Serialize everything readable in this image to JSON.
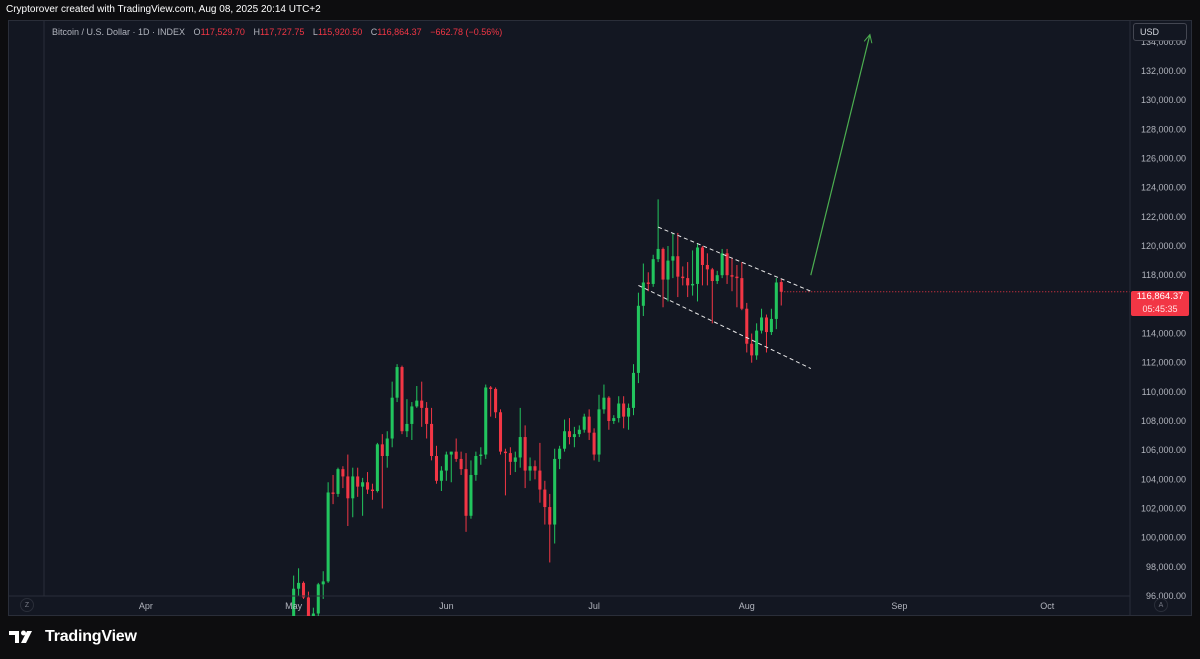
{
  "header": {
    "caption": "Cryptorover created with TradingView.com, Aug 08, 2025 20:14 UTC+2"
  },
  "legend": {
    "symbol": "Bitcoin / U.S. Dollar · 1D · INDEX",
    "o_label": "O",
    "o_value": "117,529.70",
    "h_label": "H",
    "h_value": "117,727.75",
    "l_label": "L",
    "l_value": "115,920.50",
    "c_label": "C",
    "c_value": "116,864.37",
    "change": "−662.78 (−0.56%)"
  },
  "price_axis": {
    "currency": "USD",
    "ticks": [
      "134,000.00",
      "132,000.00",
      "130,000.00",
      "128,000.00",
      "126,000.00",
      "124,000.00",
      "122,000.00",
      "120,000.00",
      "118,000.00",
      "114,000.00",
      "112,000.00",
      "110,000.00",
      "108,000.00",
      "106,000.00",
      "104,000.00",
      "102,000.00",
      "100,000.00",
      "98,000.00",
      "96,000.00"
    ],
    "last_price": "116,864.37",
    "countdown": "05:45:35"
  },
  "time_axis": {
    "labels": [
      "Apr",
      "May",
      "Jun",
      "Jul",
      "Aug",
      "Sep",
      "Oct"
    ],
    "left_button": "Z",
    "right_button": "A"
  },
  "brand": {
    "name": "TradingView"
  },
  "colors": {
    "up": "#26a69a",
    "up_bright": "#22c55e",
    "down": "#f23645",
    "bg": "#131722",
    "arrow": "#4caf50",
    "channel": "#e8e8e8"
  },
  "chart_data": {
    "type": "candlestick",
    "title": "Bitcoin / U.S. Dollar · 1D · INDEX",
    "ylim": [
      96000,
      135500
    ],
    "x_axis": "date",
    "x_range": [
      "2025-03-04",
      "2025-10-17"
    ],
    "series": [
      {
        "d": "2025-05-01",
        "o": 94200,
        "h": 97400,
        "l": 94000,
        "c": 96500
      },
      {
        "d": "2025-05-02",
        "o": 96500,
        "h": 97900,
        "l": 96000,
        "c": 96900
      },
      {
        "d": "2025-05-03",
        "o": 96900,
        "h": 97000,
        "l": 95800,
        "c": 95900
      },
      {
        "d": "2025-05-04",
        "o": 95900,
        "h": 96300,
        "l": 94100,
        "c": 94300
      },
      {
        "d": "2025-05-05",
        "o": 94300,
        "h": 95200,
        "l": 93500,
        "c": 94800
      },
      {
        "d": "2025-05-06",
        "o": 94800,
        "h": 96900,
        "l": 93400,
        "c": 96800
      },
      {
        "d": "2025-05-07",
        "o": 96800,
        "h": 97700,
        "l": 95800,
        "c": 97000
      },
      {
        "d": "2025-05-08",
        "o": 97000,
        "h": 103800,
        "l": 96900,
        "c": 103100
      },
      {
        "d": "2025-05-09",
        "o": 103100,
        "h": 104300,
        "l": 102300,
        "c": 103000
      },
      {
        "d": "2025-05-10",
        "o": 103000,
        "h": 104800,
        "l": 102800,
        "c": 104700
      },
      {
        "d": "2025-05-11",
        "o": 104700,
        "h": 104900,
        "l": 103400,
        "c": 104200
      },
      {
        "d": "2025-05-12",
        "o": 104200,
        "h": 105700,
        "l": 100800,
        "c": 102700
      },
      {
        "d": "2025-05-13",
        "o": 102700,
        "h": 104800,
        "l": 101400,
        "c": 104200
      },
      {
        "d": "2025-05-14",
        "o": 104200,
        "h": 104800,
        "l": 102800,
        "c": 103500
      },
      {
        "d": "2025-05-15",
        "o": 103500,
        "h": 104100,
        "l": 101500,
        "c": 103800
      },
      {
        "d": "2025-05-16",
        "o": 103800,
        "h": 104500,
        "l": 103000,
        "c": 103300
      },
      {
        "d": "2025-05-17",
        "o": 103300,
        "h": 103700,
        "l": 102600,
        "c": 103200
      },
      {
        "d": "2025-05-18",
        "o": 103200,
        "h": 106500,
        "l": 103100,
        "c": 106400
      },
      {
        "d": "2025-05-19",
        "o": 106400,
        "h": 107100,
        "l": 102000,
        "c": 105600
      },
      {
        "d": "2025-05-20",
        "o": 105600,
        "h": 107300,
        "l": 104800,
        "c": 106800
      },
      {
        "d": "2025-05-21",
        "o": 106800,
        "h": 110700,
        "l": 106200,
        "c": 109600
      },
      {
        "d": "2025-05-22",
        "o": 109600,
        "h": 111900,
        "l": 109300,
        "c": 111700
      },
      {
        "d": "2025-05-23",
        "o": 111700,
        "h": 111800,
        "l": 107100,
        "c": 107300
      },
      {
        "d": "2025-05-24",
        "o": 107300,
        "h": 109500,
        "l": 106900,
        "c": 107800
      },
      {
        "d": "2025-05-25",
        "o": 107800,
        "h": 109300,
        "l": 106700,
        "c": 109000
      },
      {
        "d": "2025-05-26",
        "o": 109000,
        "h": 110400,
        "l": 108900,
        "c": 109400
      },
      {
        "d": "2025-05-27",
        "o": 109400,
        "h": 110700,
        "l": 107600,
        "c": 108900
      },
      {
        "d": "2025-05-28",
        "o": 108900,
        "h": 109300,
        "l": 106800,
        "c": 107800
      },
      {
        "d": "2025-05-29",
        "o": 107800,
        "h": 108900,
        "l": 105300,
        "c": 105600
      },
      {
        "d": "2025-05-30",
        "o": 105600,
        "h": 106300,
        "l": 103700,
        "c": 103900
      },
      {
        "d": "2025-05-31",
        "o": 103900,
        "h": 104900,
        "l": 103200,
        "c": 104600
      },
      {
        "d": "2025-06-01",
        "o": 104600,
        "h": 105900,
        "l": 103900,
        "c": 105700
      },
      {
        "d": "2025-06-02",
        "o": 105700,
        "h": 105900,
        "l": 103800,
        "c": 105900
      },
      {
        "d": "2025-06-03",
        "o": 105900,
        "h": 106800,
        "l": 105200,
        "c": 105400
      },
      {
        "d": "2025-06-04",
        "o": 105400,
        "h": 105900,
        "l": 104300,
        "c": 104700
      },
      {
        "d": "2025-06-05",
        "o": 104700,
        "h": 105800,
        "l": 100400,
        "c": 101500
      },
      {
        "d": "2025-06-06",
        "o": 101500,
        "h": 105300,
        "l": 101300,
        "c": 104300
      },
      {
        "d": "2025-06-07",
        "o": 104300,
        "h": 105900,
        "l": 103900,
        "c": 105600
      },
      {
        "d": "2025-06-08",
        "o": 105600,
        "h": 106200,
        "l": 105000,
        "c": 105700
      },
      {
        "d": "2025-06-09",
        "o": 105700,
        "h": 110500,
        "l": 105400,
        "c": 110300
      },
      {
        "d": "2025-06-10",
        "o": 110300,
        "h": 110400,
        "l": 108300,
        "c": 110200
      },
      {
        "d": "2025-06-11",
        "o": 110200,
        "h": 110300,
        "l": 108200,
        "c": 108600
      },
      {
        "d": "2025-06-12",
        "o": 108600,
        "h": 108800,
        "l": 105700,
        "c": 105900
      },
      {
        "d": "2025-06-13",
        "o": 105900,
        "h": 106100,
        "l": 102900,
        "c": 105800
      },
      {
        "d": "2025-06-14",
        "o": 105800,
        "h": 106200,
        "l": 104300,
        "c": 105200
      },
      {
        "d": "2025-06-15",
        "o": 105200,
        "h": 105900,
        "l": 104500,
        "c": 105500
      },
      {
        "d": "2025-06-16",
        "o": 105500,
        "h": 108900,
        "l": 104800,
        "c": 106900
      },
      {
        "d": "2025-06-17",
        "o": 106900,
        "h": 107700,
        "l": 103400,
        "c": 104600
      },
      {
        "d": "2025-06-18",
        "o": 104600,
        "h": 105500,
        "l": 103900,
        "c": 104900
      },
      {
        "d": "2025-06-19",
        "o": 104900,
        "h": 105300,
        "l": 104000,
        "c": 104600
      },
      {
        "d": "2025-06-20",
        "o": 104600,
        "h": 106500,
        "l": 102400,
        "c": 103300
      },
      {
        "d": "2025-06-21",
        "o": 103300,
        "h": 103900,
        "l": 100900,
        "c": 102100
      },
      {
        "d": "2025-06-22",
        "o": 102100,
        "h": 103000,
        "l": 98300,
        "c": 100900
      },
      {
        "d": "2025-06-23",
        "o": 100900,
        "h": 106100,
        "l": 99600,
        "c": 105400
      },
      {
        "d": "2025-06-24",
        "o": 105400,
        "h": 106300,
        "l": 104700,
        "c": 106100
      },
      {
        "d": "2025-06-25",
        "o": 106100,
        "h": 108100,
        "l": 105900,
        "c": 107300
      },
      {
        "d": "2025-06-26",
        "o": 107300,
        "h": 108200,
        "l": 106400,
        "c": 106900
      },
      {
        "d": "2025-06-27",
        "o": 106900,
        "h": 107600,
        "l": 106200,
        "c": 107100
      },
      {
        "d": "2025-06-28",
        "o": 107100,
        "h": 107700,
        "l": 106900,
        "c": 107400
      },
      {
        "d": "2025-06-29",
        "o": 107400,
        "h": 108500,
        "l": 107200,
        "c": 108300
      },
      {
        "d": "2025-06-30",
        "o": 108300,
        "h": 108800,
        "l": 106700,
        "c": 107200
      },
      {
        "d": "2025-07-01",
        "o": 107200,
        "h": 107500,
        "l": 105300,
        "c": 105700
      },
      {
        "d": "2025-07-02",
        "o": 105700,
        "h": 109800,
        "l": 105200,
        "c": 108800
      },
      {
        "d": "2025-07-03",
        "o": 108800,
        "h": 110500,
        "l": 108500,
        "c": 109600
      },
      {
        "d": "2025-07-04",
        "o": 109600,
        "h": 109700,
        "l": 107400,
        "c": 108000
      },
      {
        "d": "2025-07-05",
        "o": 108000,
        "h": 108400,
        "l": 107800,
        "c": 108200
      },
      {
        "d": "2025-07-06",
        "o": 108200,
        "h": 109700,
        "l": 107900,
        "c": 109200
      },
      {
        "d": "2025-07-07",
        "o": 109200,
        "h": 109700,
        "l": 107500,
        "c": 108300
      },
      {
        "d": "2025-07-08",
        "o": 108300,
        "h": 109200,
        "l": 107400,
        "c": 108900
      },
      {
        "d": "2025-07-09",
        "o": 108900,
        "h": 111900,
        "l": 108400,
        "c": 111300
      },
      {
        "d": "2025-07-10",
        "o": 111300,
        "h": 116800,
        "l": 110600,
        "c": 115900
      },
      {
        "d": "2025-07-11",
        "o": 115900,
        "h": 118800,
        "l": 115200,
        "c": 117500
      },
      {
        "d": "2025-07-12",
        "o": 117500,
        "h": 118200,
        "l": 116900,
        "c": 117400
      },
      {
        "d": "2025-07-13",
        "o": 117400,
        "h": 119400,
        "l": 117200,
        "c": 119100
      },
      {
        "d": "2025-07-14",
        "o": 119100,
        "h": 123200,
        "l": 118900,
        "c": 119800
      },
      {
        "d": "2025-07-15",
        "o": 119800,
        "h": 119900,
        "l": 115800,
        "c": 117700
      },
      {
        "d": "2025-07-16",
        "o": 117700,
        "h": 120000,
        "l": 116200,
        "c": 119000
      },
      {
        "d": "2025-07-17",
        "o": 119000,
        "h": 120900,
        "l": 117800,
        "c": 119300
      },
      {
        "d": "2025-07-18",
        "o": 119300,
        "h": 120900,
        "l": 116500,
        "c": 117900
      },
      {
        "d": "2025-07-19",
        "o": 117900,
        "h": 118600,
        "l": 117300,
        "c": 117800
      },
      {
        "d": "2025-07-20",
        "o": 117800,
        "h": 118900,
        "l": 116500,
        "c": 117300
      },
      {
        "d": "2025-07-21",
        "o": 117300,
        "h": 119700,
        "l": 116600,
        "c": 117400
      },
      {
        "d": "2025-07-22",
        "o": 117400,
        "h": 120200,
        "l": 116200,
        "c": 119900
      },
      {
        "d": "2025-07-23",
        "o": 119900,
        "h": 120000,
        "l": 117300,
        "c": 118700
      },
      {
        "d": "2025-07-24",
        "o": 118700,
        "h": 119500,
        "l": 117300,
        "c": 118400
      },
      {
        "d": "2025-07-25",
        "o": 118400,
        "h": 118500,
        "l": 114700,
        "c": 117600
      },
      {
        "d": "2025-07-26",
        "o": 117600,
        "h": 118300,
        "l": 117400,
        "c": 118000
      },
      {
        "d": "2025-07-27",
        "o": 118000,
        "h": 119800,
        "l": 117800,
        "c": 119500
      },
      {
        "d": "2025-07-28",
        "o": 119500,
        "h": 119800,
        "l": 117400,
        "c": 118000
      },
      {
        "d": "2025-07-29",
        "o": 118000,
        "h": 119200,
        "l": 116900,
        "c": 117900
      },
      {
        "d": "2025-07-30",
        "o": 117900,
        "h": 118700,
        "l": 115800,
        "c": 117800
      },
      {
        "d": "2025-07-31",
        "o": 117800,
        "h": 118900,
        "l": 115600,
        "c": 115700
      },
      {
        "d": "2025-08-01",
        "o": 115700,
        "h": 116100,
        "l": 112700,
        "c": 113300
      },
      {
        "d": "2025-08-02",
        "o": 113300,
        "h": 114000,
        "l": 112000,
        "c": 112500
      },
      {
        "d": "2025-08-03",
        "o": 112500,
        "h": 114700,
        "l": 112200,
        "c": 114200
      },
      {
        "d": "2025-08-04",
        "o": 114200,
        "h": 115700,
        "l": 114000,
        "c": 115100
      },
      {
        "d": "2025-08-05",
        "o": 115100,
        "h": 115300,
        "l": 112700,
        "c": 114100
      },
      {
        "d": "2025-08-06",
        "o": 114100,
        "h": 115700,
        "l": 113900,
        "c": 115000
      },
      {
        "d": "2025-08-07",
        "o": 115000,
        "h": 117800,
        "l": 114300,
        "c": 117500
      },
      {
        "d": "2025-08-08",
        "o": 117529.7,
        "h": 117727.75,
        "l": 115920.5,
        "c": 116864.37
      }
    ],
    "annotations": [
      {
        "type": "dashed-line",
        "name": "upper-channel",
        "from": [
          "2025-07-14",
          121300
        ],
        "to": [
          "2025-08-14",
          116900
        ]
      },
      {
        "type": "dashed-line",
        "name": "lower-channel",
        "from": [
          "2025-07-10",
          117300
        ],
        "to": [
          "2025-08-14",
          111600
        ]
      },
      {
        "type": "arrow",
        "name": "projection-arrow",
        "from": [
          "2025-08-14",
          118000
        ],
        "to": [
          "2025-08-26",
          134500
        ]
      }
    ]
  }
}
